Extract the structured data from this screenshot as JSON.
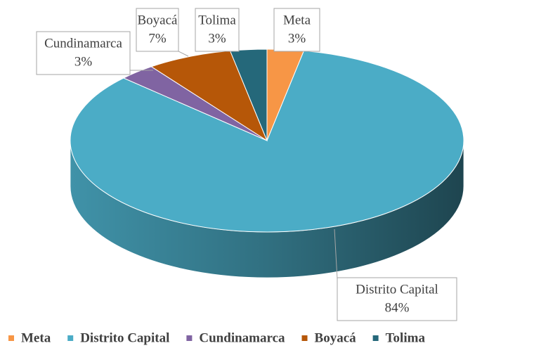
{
  "chart_data": {
    "type": "pie3d",
    "categories": [
      "Meta",
      "Distrito Capital",
      "Cundinamarca",
      "Boyacá",
      "Tolima"
    ],
    "values": [
      3,
      84,
      3,
      7,
      3
    ],
    "value_labels": [
      "3%",
      "84%",
      "3%",
      "7%",
      "3%"
    ],
    "colors": [
      "#f79646",
      "#4bacc6",
      "#8064a2",
      "#b65708",
      "#25687a"
    ],
    "legend": "bottom"
  }
}
